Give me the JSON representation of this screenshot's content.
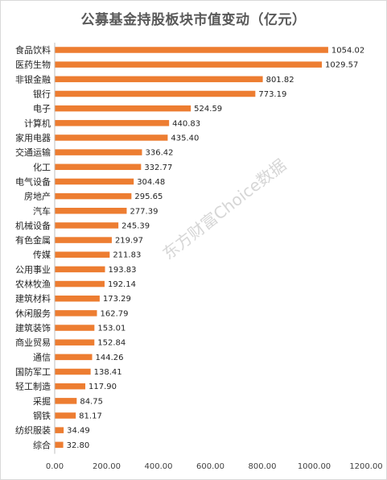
{
  "chart_data": {
    "type": "bar",
    "orientation": "horizontal",
    "title": "公募基金持股板块市值变动（亿元）",
    "watermark": "东方财富Choice数据",
    "bar_color": "#ed7d31",
    "categories": [
      "食品饮料",
      "医药生物",
      "非银金融",
      "银行",
      "电子",
      "计算机",
      "家用电器",
      "交通运输",
      "化工",
      "电气设备",
      "房地产",
      "汽车",
      "机械设备",
      "有色金属",
      "传媒",
      "公用事业",
      "农林牧渔",
      "建筑材料",
      "休闲服务",
      "建筑装饰",
      "商业贸易",
      "通信",
      "国防军工",
      "轻工制造",
      "采掘",
      "钢铁",
      "纺织服装",
      "综合"
    ],
    "values": [
      1054.02,
      1029.57,
      801.82,
      773.19,
      524.59,
      440.83,
      435.4,
      336.42,
      332.77,
      304.48,
      295.65,
      277.39,
      245.39,
      219.97,
      211.83,
      193.83,
      192.14,
      173.29,
      162.79,
      153.01,
      152.84,
      144.26,
      138.41,
      117.9,
      84.75,
      81.17,
      34.49,
      32.8
    ],
    "value_labels": [
      "1054.02",
      "1029.57",
      "801.82",
      "773.19",
      "524.59",
      "440.83",
      "435.40",
      "336.42",
      "332.77",
      "304.48",
      "295.65",
      "277.39",
      "245.39",
      "219.97",
      "211.83",
      "193.83",
      "192.14",
      "173.29",
      "162.79",
      "153.01",
      "152.84",
      "144.26",
      "138.41",
      "117.90",
      "84.75",
      "81.17",
      "34.49",
      "32.80"
    ],
    "xlim": [
      0,
      1200
    ],
    "xticks": [
      "0.00",
      "200.00",
      "400.00",
      "600.00",
      "800.00",
      "1000.00",
      "1200.00"
    ],
    "grid": false
  }
}
